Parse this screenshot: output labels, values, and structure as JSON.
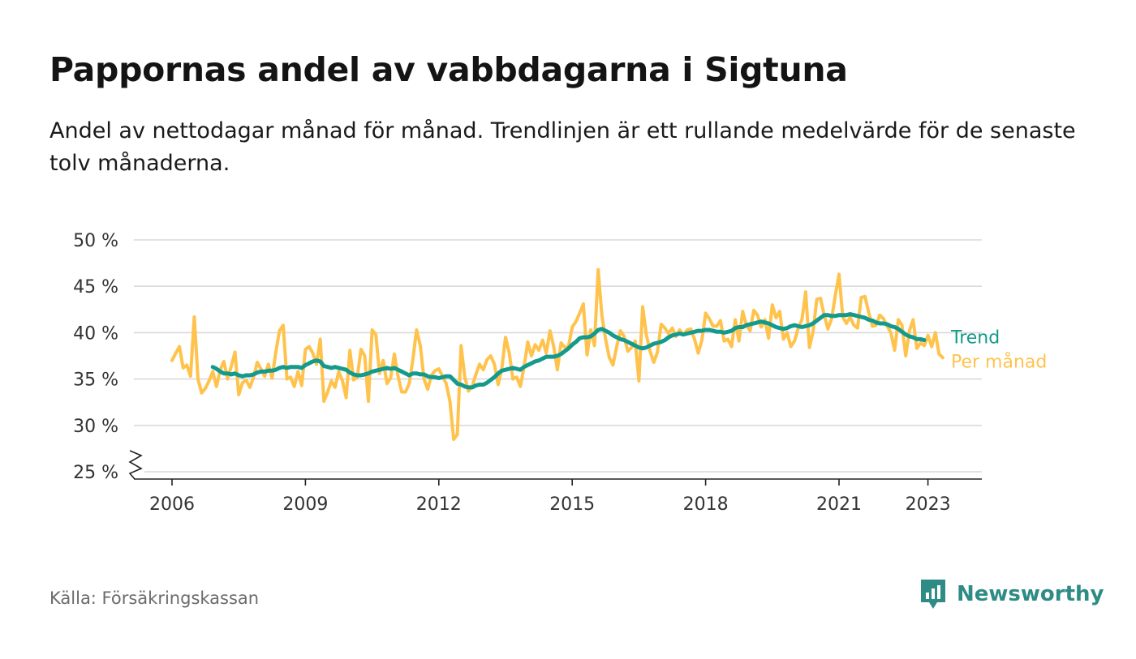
{
  "title": "Pappornas andel av vabbdagarna i Sigtuna",
  "subtitle": "Andel av nettodagar månad för månad. Trendlinjen är ett rullande medelvärde för de senaste tolv månaderna.",
  "source": "Källa: Försäkringskassan",
  "brand": {
    "name": "Newsworthy",
    "icon": "newsworthy-logo-icon"
  },
  "colors": {
    "monthly": "#FFC34D",
    "trend": "#149A8C",
    "grid": "#d9d9d9",
    "axis": "#222222",
    "brand": "#2e8b85"
  },
  "chart_data": {
    "type": "line",
    "start": "2006-01",
    "x_tick_labels": [
      "2006",
      "2009",
      "2012",
      "2015",
      "2018",
      "2021",
      "2023"
    ],
    "x_tick_years": [
      2006,
      2009,
      2012,
      2015,
      2018,
      2021,
      2023
    ],
    "y_ticks": [
      25,
      30,
      35,
      40,
      45,
      50
    ],
    "y_tick_labels": [
      "25 %",
      "30 %",
      "35 %",
      "40 %",
      "45 %",
      "50 %"
    ],
    "ylim": [
      25,
      50
    ],
    "y_axis_break": true,
    "grid": true,
    "series": [
      {
        "name": "Per månad",
        "values": [
          37.0,
          37.8,
          38.5,
          36.2,
          36.5,
          35.3,
          41.7,
          35.0,
          33.5,
          34.0,
          34.8,
          35.8,
          34.2,
          36.0,
          36.9,
          35.0,
          36.4,
          37.9,
          33.3,
          34.6,
          34.9,
          34.1,
          35.2,
          36.8,
          36.1,
          35.3,
          36.6,
          35.1,
          37.9,
          40.2,
          40.8,
          35.0,
          35.2,
          34.2,
          35.8,
          34.3,
          38.2,
          38.5,
          37.8,
          36.6,
          39.3,
          32.6,
          33.6,
          34.8,
          34.1,
          35.8,
          34.8,
          33.0,
          38.1,
          34.9,
          35.2,
          38.2,
          37.5,
          32.6,
          40.3,
          39.8,
          35.6,
          37.0,
          34.5,
          35.1,
          37.7,
          35.3,
          33.6,
          33.6,
          34.5,
          37.1,
          40.3,
          38.6,
          35.0,
          33.9,
          35.4,
          35.9,
          36.1,
          35.3,
          34.5,
          32.6,
          28.5,
          29.0,
          38.6,
          35.2,
          33.7,
          34.2,
          35.5,
          36.6,
          36.0,
          37.1,
          37.5,
          36.6,
          34.4,
          36.1,
          39.5,
          37.8,
          35.0,
          35.2,
          34.2,
          36.3,
          39.0,
          37.5,
          38.7,
          38.1,
          39.2,
          37.8,
          40.2,
          38.5,
          36.0,
          38.9,
          38.4,
          38.5,
          40.6,
          41.2,
          42.1,
          43.1,
          37.6,
          40.3,
          38.6,
          46.8,
          41.9,
          39.3,
          37.3,
          36.5,
          38.5,
          40.2,
          39.6,
          38.0,
          38.4,
          39.1,
          34.8,
          42.8,
          39.8,
          38.0,
          36.8,
          37.9,
          40.9,
          40.5,
          39.9,
          40.5,
          39.6,
          40.3,
          39.8,
          40.3,
          40.4,
          39.3,
          37.8,
          39.2,
          42.1,
          41.5,
          40.7,
          40.7,
          41.3,
          39.1,
          39.3,
          38.5,
          41.4,
          39.1,
          42.3,
          40.8,
          40.2,
          42.4,
          41.9,
          40.6,
          41.4,
          39.4,
          43.0,
          41.6,
          42.3,
          39.3,
          40.0,
          38.5,
          39.1,
          40.5,
          41.4,
          44.4,
          38.4,
          40.1,
          43.6,
          43.7,
          41.9,
          40.4,
          41.5,
          44.0,
          46.3,
          41.7,
          41.0,
          41.7,
          40.8,
          40.5,
          43.8,
          43.9,
          42.2,
          40.7,
          40.8,
          41.9,
          41.5,
          40.7,
          40.0,
          38.1,
          41.4,
          40.8,
          37.5,
          40.2,
          41.4,
          38.3,
          38.9,
          38.6,
          39.7,
          38.5,
          40.0,
          37.7,
          37.3
        ]
      },
      {
        "name": "Trend",
        "values": [
          null,
          null,
          null,
          null,
          null,
          null,
          null,
          null,
          null,
          null,
          null,
          36.3,
          36.1,
          35.8,
          35.6,
          35.6,
          35.5,
          35.6,
          35.4,
          35.3,
          35.4,
          35.4,
          35.5,
          35.7,
          35.8,
          35.8,
          35.9,
          35.9,
          36.0,
          36.2,
          36.3,
          36.2,
          36.3,
          36.3,
          36.3,
          36.2,
          36.5,
          36.7,
          36.9,
          37.0,
          36.9,
          36.4,
          36.3,
          36.2,
          36.3,
          36.2,
          36.1,
          36.0,
          35.7,
          35.5,
          35.4,
          35.4,
          35.5,
          35.6,
          35.8,
          35.9,
          36.0,
          36.1,
          36.2,
          36.1,
          36.2,
          36.0,
          35.8,
          35.6,
          35.4,
          35.6,
          35.6,
          35.5,
          35.5,
          35.3,
          35.2,
          35.2,
          35.1,
          35.2,
          35.3,
          35.3,
          34.9,
          34.5,
          34.4,
          34.2,
          34.1,
          34.1,
          34.3,
          34.4,
          34.4,
          34.6,
          34.9,
          35.2,
          35.6,
          35.9,
          36.0,
          36.1,
          36.2,
          36.1,
          36.0,
          36.3,
          36.5,
          36.7,
          36.9,
          37.0,
          37.2,
          37.4,
          37.4,
          37.4,
          37.5,
          37.7,
          38.0,
          38.3,
          38.7,
          39.0,
          39.4,
          39.5,
          39.5,
          39.6,
          39.9,
          40.3,
          40.4,
          40.2,
          40.0,
          39.7,
          39.5,
          39.3,
          39.2,
          39.0,
          38.8,
          38.6,
          38.4,
          38.3,
          38.4,
          38.6,
          38.8,
          38.9,
          39.0,
          39.2,
          39.5,
          39.7,
          39.8,
          39.9,
          39.8,
          39.9,
          40.0,
          40.1,
          40.2,
          40.2,
          40.3,
          40.3,
          40.2,
          40.1,
          40.1,
          40.0,
          40.1,
          40.2,
          40.5,
          40.6,
          40.6,
          40.8,
          40.9,
          41.0,
          41.1,
          41.2,
          41.1,
          41.0,
          40.8,
          40.6,
          40.5,
          40.4,
          40.5,
          40.7,
          40.8,
          40.7,
          40.6,
          40.7,
          40.8,
          41.0,
          41.3,
          41.6,
          41.9,
          41.9,
          41.8,
          41.8,
          41.9,
          41.9,
          41.9,
          42.0,
          41.9,
          41.8,
          41.7,
          41.6,
          41.4,
          41.3,
          41.1,
          41.0,
          41.0,
          40.9,
          40.7,
          40.6,
          40.4,
          40.1,
          39.8,
          39.6,
          39.5,
          39.3,
          39.3,
          39.2
        ]
      }
    ]
  }
}
